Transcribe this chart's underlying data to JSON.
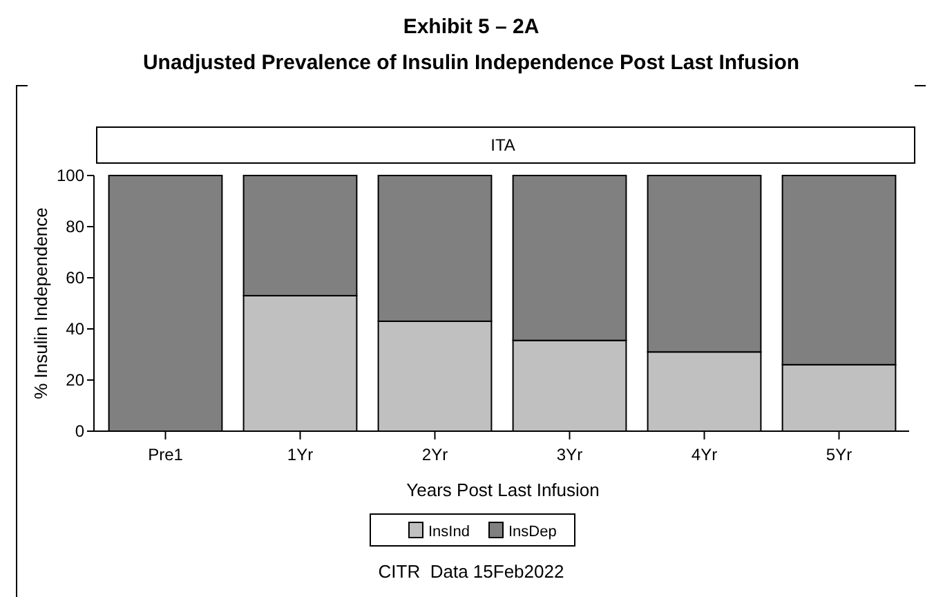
{
  "chart_data": {
    "type": "bar",
    "title": "Exhibit 5 – 2A",
    "subtitle": "Unadjusted Prevalence of Insulin Independence Post Last Infusion",
    "xlabel": "Years Post Last Infusion",
    "ylabel": "% Insulin Independence",
    "annotations": [
      "ITA",
      "CITR  Data 15Feb2022"
    ],
    "categories": [
      "Pre1",
      "1Yr",
      "2Yr",
      "3Yr",
      "4Yr",
      "5Yr"
    ],
    "stacked": true,
    "series": [
      {
        "name": "InsInd",
        "color": "#c0c0c0",
        "values": [
          0,
          53,
          43,
          35.5,
          31,
          26
        ]
      },
      {
        "name": "InsDep",
        "color": "#808080",
        "values": [
          100,
          47,
          57,
          64.5,
          69,
          74
        ]
      }
    ],
    "ylim": [
      0,
      100
    ],
    "yticks": [
      0,
      20,
      40,
      60,
      80,
      100
    ],
    "grid": false,
    "legend": "bottom"
  }
}
